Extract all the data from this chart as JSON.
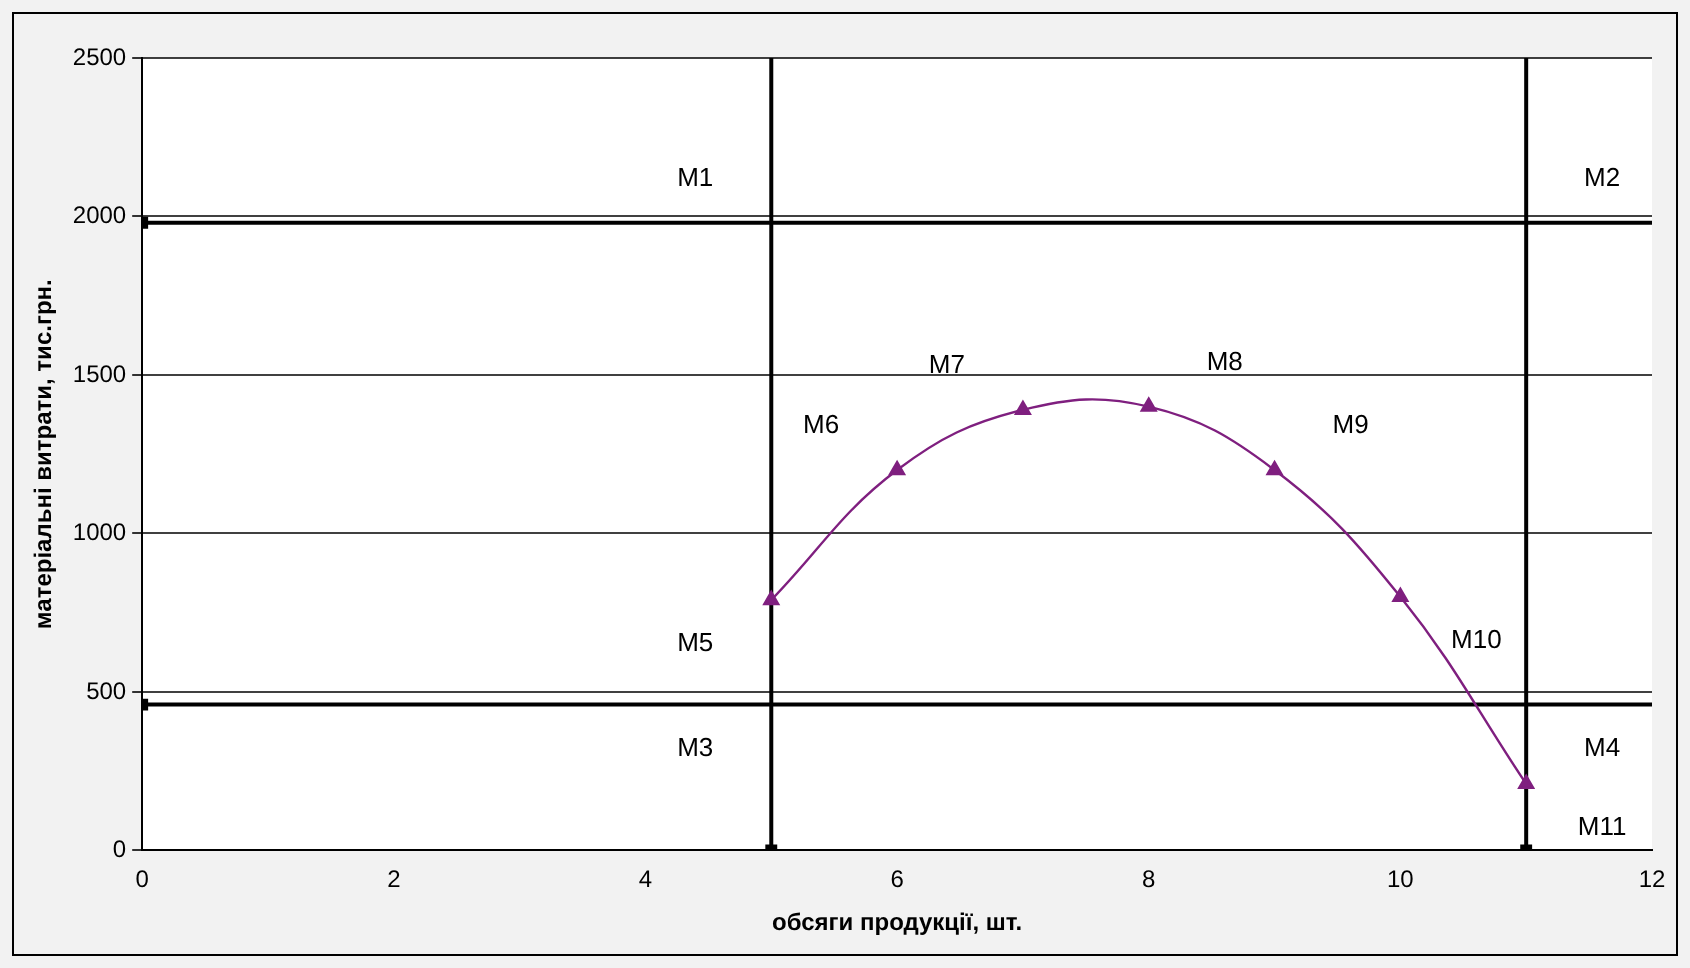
{
  "chart_data": {
    "type": "line",
    "xlabel": "обсяги продукції, шт.",
    "ylabel": "матеріальні витрати, тис.грн.",
    "xlim": [
      0,
      12
    ],
    "xticks": [
      0,
      2,
      4,
      6,
      8,
      10,
      12
    ],
    "ylim": [
      0,
      2500
    ],
    "yticks": [
      0,
      500,
      1000,
      1500,
      2000,
      2500
    ],
    "grid": "y",
    "legend": false,
    "series": [
      {
        "type": "line",
        "color": "#7f1f7f",
        "marker": "triangle",
        "x": [
          5,
          6,
          7,
          8,
          9,
          10,
          11
        ],
        "values": [
          790,
          1200,
          1390,
          1400,
          1200,
          800,
          210
        ]
      },
      {
        "type": "scatter",
        "color": "#000000",
        "marker": "square",
        "x": [
          0,
          0,
          5,
          11
        ],
        "values": [
          1980,
          460,
          0,
          0
        ]
      }
    ],
    "ref_lines": [
      {
        "axis": "y",
        "value": 1980,
        "color": "#000000"
      },
      {
        "axis": "y",
        "value": 460,
        "color": "#000000"
      },
      {
        "axis": "x",
        "value": 5,
        "color": "#000000"
      },
      {
        "axis": "x",
        "value": 11,
        "color": "#000000"
      }
    ],
    "annotations": [
      {
        "text": "M1",
        "x": 5,
        "y": 1980
      },
      {
        "text": "M2",
        "x": 11,
        "y": 1980
      },
      {
        "text": "M3",
        "x": 5,
        "y": 460
      },
      {
        "text": "M4",
        "x": 11,
        "y": 460
      },
      {
        "text": "M5",
        "x": 5,
        "y": 790
      },
      {
        "text": "M6",
        "x": 6,
        "y": 1200
      },
      {
        "text": "M7",
        "x": 7,
        "y": 1390
      },
      {
        "text": "M8",
        "x": 8,
        "y": 1400
      },
      {
        "text": "M9",
        "x": 9,
        "y": 1200
      },
      {
        "text": "M10",
        "x": 10,
        "y": 800
      },
      {
        "text": "M11",
        "x": 11,
        "y": 210
      }
    ]
  }
}
